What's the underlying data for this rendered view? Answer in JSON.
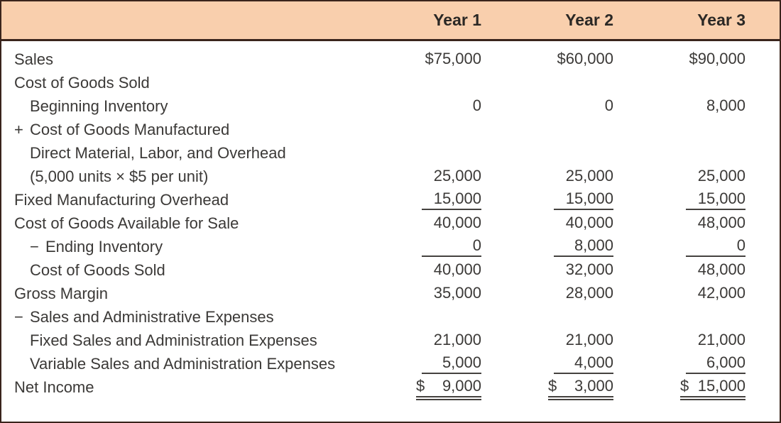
{
  "colors": {
    "header_bg": "#f9cfad",
    "border": "#3a241c",
    "text": "#3b3937",
    "rule_line": "#45423f"
  },
  "table": {
    "header": {
      "label_col": "",
      "columns": [
        "Year 1",
        "Year 2",
        "Year 3"
      ]
    },
    "rows": [
      {
        "label": "Sales",
        "indent": 0,
        "prefix": "",
        "values": [
          "$75,000",
          "$60,000",
          "$90,000"
        ],
        "rule": "none"
      },
      {
        "label": "Cost of Goods Sold",
        "indent": 0,
        "prefix": "",
        "values": [
          "",
          "",
          ""
        ],
        "rule": "none"
      },
      {
        "label": "Beginning Inventory",
        "indent": 1,
        "prefix": "",
        "values": [
          "0",
          "0",
          "8,000"
        ],
        "rule": "none"
      },
      {
        "label": "Cost of Goods Manufactured",
        "indent": 0,
        "prefix": "+",
        "values": [
          "",
          "",
          ""
        ],
        "rule": "none"
      },
      {
        "label": "Direct Material, Labor, and Overhead",
        "indent": 1,
        "prefix": "",
        "values": [
          "",
          "",
          ""
        ],
        "rule": "none"
      },
      {
        "label": "(5,000 units × $5 per unit)",
        "indent": 1,
        "prefix": "",
        "values": [
          "25,000",
          "25,000",
          "25,000"
        ],
        "rule": "none"
      },
      {
        "label": "Fixed Manufacturing Overhead",
        "indent": 0,
        "prefix": "",
        "values": [
          "15,000",
          "15,000",
          "15,000"
        ],
        "rule": "single"
      },
      {
        "label": "Cost of Goods Available for Sale",
        "indent": 0,
        "prefix": "",
        "values": [
          "40,000",
          "40,000",
          "48,000"
        ],
        "rule": "none"
      },
      {
        "label": "Ending Inventory",
        "indent": 1,
        "prefix": "−",
        "values": [
          "0",
          "8,000",
          "0"
        ],
        "rule": "single"
      },
      {
        "label": "Cost of Goods Sold",
        "indent": 1,
        "prefix": "",
        "values": [
          "40,000",
          "32,000",
          "48,000"
        ],
        "rule": "none"
      },
      {
        "label": "Gross Margin",
        "indent": 0,
        "prefix": "",
        "values": [
          "35,000",
          "28,000",
          "42,000"
        ],
        "rule": "none"
      },
      {
        "label": "Sales and Administrative Expenses",
        "indent": 0,
        "prefix": "−",
        "values": [
          "",
          "",
          ""
        ],
        "rule": "none"
      },
      {
        "label": "Fixed Sales and Administration Expenses",
        "indent": 1,
        "prefix": "",
        "values": [
          "21,000",
          "21,000",
          "21,000"
        ],
        "rule": "none"
      },
      {
        "label": "Variable Sales and Administration Expenses",
        "indent": 1,
        "prefix": "",
        "values": [
          "5,000",
          "4,000",
          "6,000"
        ],
        "rule": "single"
      },
      {
        "label": "Net Income",
        "indent": 0,
        "prefix": "",
        "values": [
          {
            "cur": "$",
            "num": "9,000"
          },
          {
            "cur": "$",
            "num": "3,000"
          },
          {
            "cur": "$",
            "num": "15,000"
          }
        ],
        "rule": "double"
      }
    ]
  }
}
